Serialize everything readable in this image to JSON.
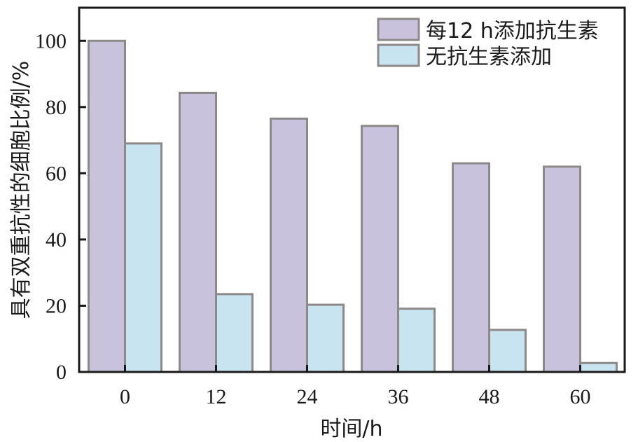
{
  "chart_data": {
    "type": "bar",
    "xlabel": "时间/h",
    "ylabel": "具有双重抗性的细胞比例/%",
    "categories": [
      "0",
      "12",
      "24",
      "36",
      "48",
      "60"
    ],
    "ylim": [
      0,
      110
    ],
    "yticks": [
      0,
      20,
      40,
      60,
      80,
      100
    ],
    "grid": false,
    "legend_position": "top-right",
    "series": [
      {
        "name": "每12 h添加抗生素",
        "color": "#c8c2dc",
        "values": [
          100,
          84.3,
          76.5,
          74.3,
          63.0,
          62.0
        ]
      },
      {
        "name": "无抗生素添加",
        "color": "#c7e4f0",
        "values": [
          69.0,
          23.5,
          20.3,
          19.1,
          12.7,
          2.7
        ]
      }
    ],
    "bar_edge_color": "#8e8989",
    "axis_color": "#1a1a1a"
  }
}
